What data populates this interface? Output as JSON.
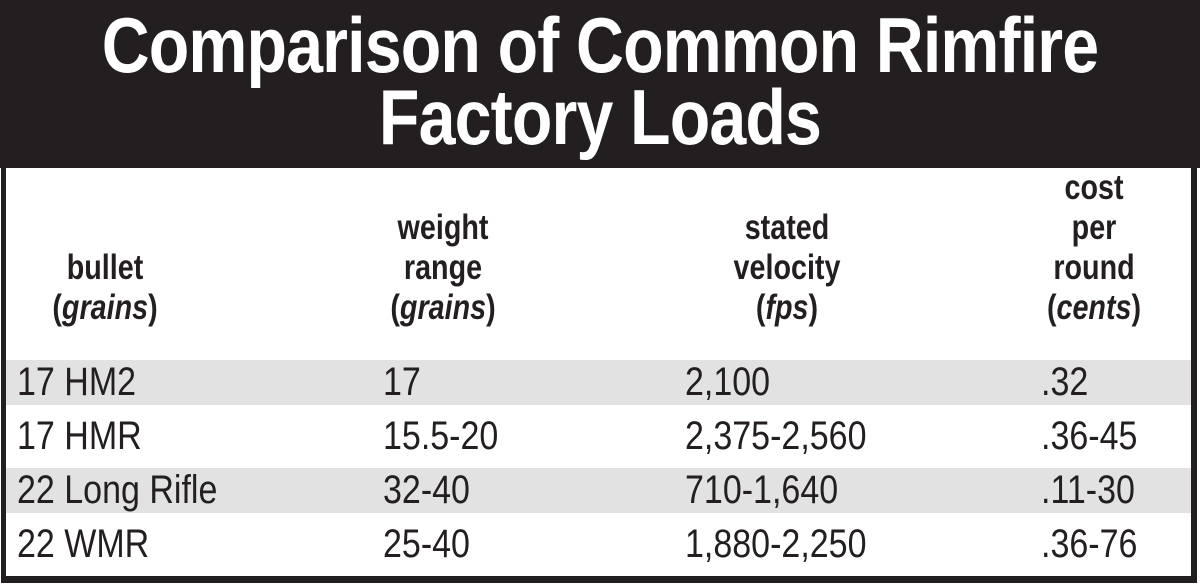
{
  "colors": {
    "banner_bg": "#231f20",
    "border": "#231f20",
    "text": "#231f20",
    "row_shade": "#e2e2e3",
    "title_text": "#ffffff"
  },
  "title": {
    "line1": "Comparison of Common Rimfire",
    "line2": "Factory Loads"
  },
  "punct": {
    "open_paren": "(",
    "close_paren": ")"
  },
  "table": {
    "header": {
      "columns": [
        {
          "lines": [
            "bullet"
          ],
          "unit": "grains"
        },
        {
          "lines": [
            "weight",
            "range"
          ],
          "unit": "grains"
        },
        {
          "lines": [
            "stated",
            "velocity"
          ],
          "unit": "fps"
        },
        {
          "lines": [
            "cost",
            "per",
            "round"
          ],
          "unit": "cents"
        }
      ]
    }
  },
  "chart_data": {
    "type": "table",
    "title": "Comparison of Common Rimfire Factory Loads",
    "columns": [
      "bullet (grains)",
      "weight range (grains)",
      "stated velocity (fps)",
      "cost per round (cents)"
    ],
    "rows": [
      [
        "17 HM2",
        "17",
        "2,100",
        ".32"
      ],
      [
        "17 HMR",
        "15.5-20",
        "2,375-2,560",
        ".36-45"
      ],
      [
        "22 Long Rifle",
        "32-40",
        "710-1,640",
        ".11-30"
      ],
      [
        "22 WMR",
        "25-40",
        "1,880-2,250",
        ".36-76"
      ]
    ],
    "row_shading": [
      true,
      false,
      true,
      false
    ],
    "layout": {
      "banner": "black with white condensed bold title",
      "shaded_row_color": "#e2e2e3",
      "grid": "no vertical rules; alternating row bands"
    }
  }
}
